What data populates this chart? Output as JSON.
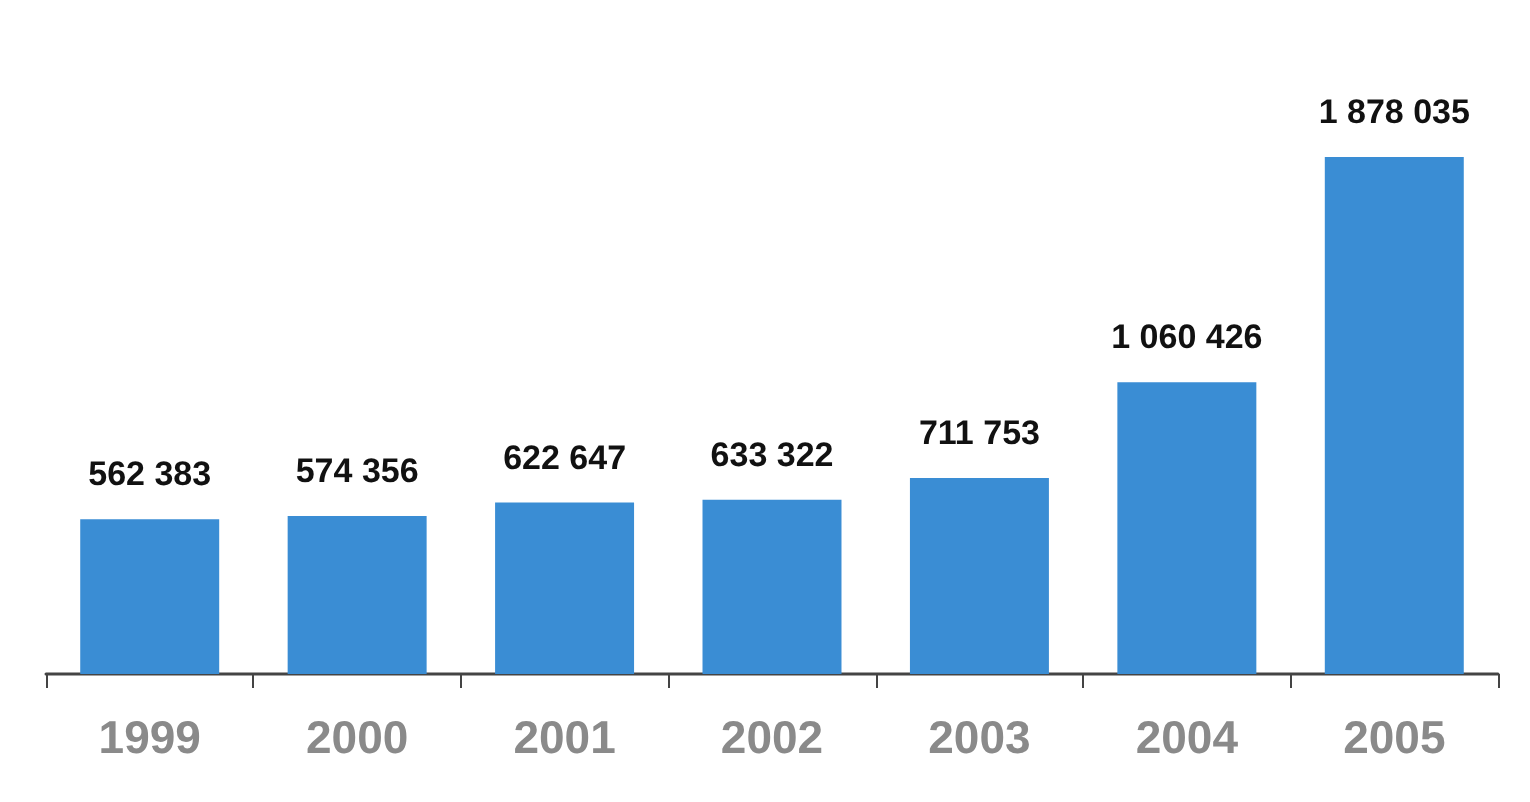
{
  "chart_data": {
    "type": "bar",
    "categories": [
      "1999",
      "2000",
      "2001",
      "2002",
      "2003",
      "2004",
      "2005"
    ],
    "values": [
      562383,
      574356,
      622647,
      633322,
      711753,
      1060426,
      1878035
    ],
    "value_labels": [
      "562 383",
      "574 356",
      "622 647",
      "633 322",
      "711 753",
      "1 060 426",
      "1 878 035"
    ],
    "color": "#3a8dd4",
    "tick_labels": "x"
  }
}
